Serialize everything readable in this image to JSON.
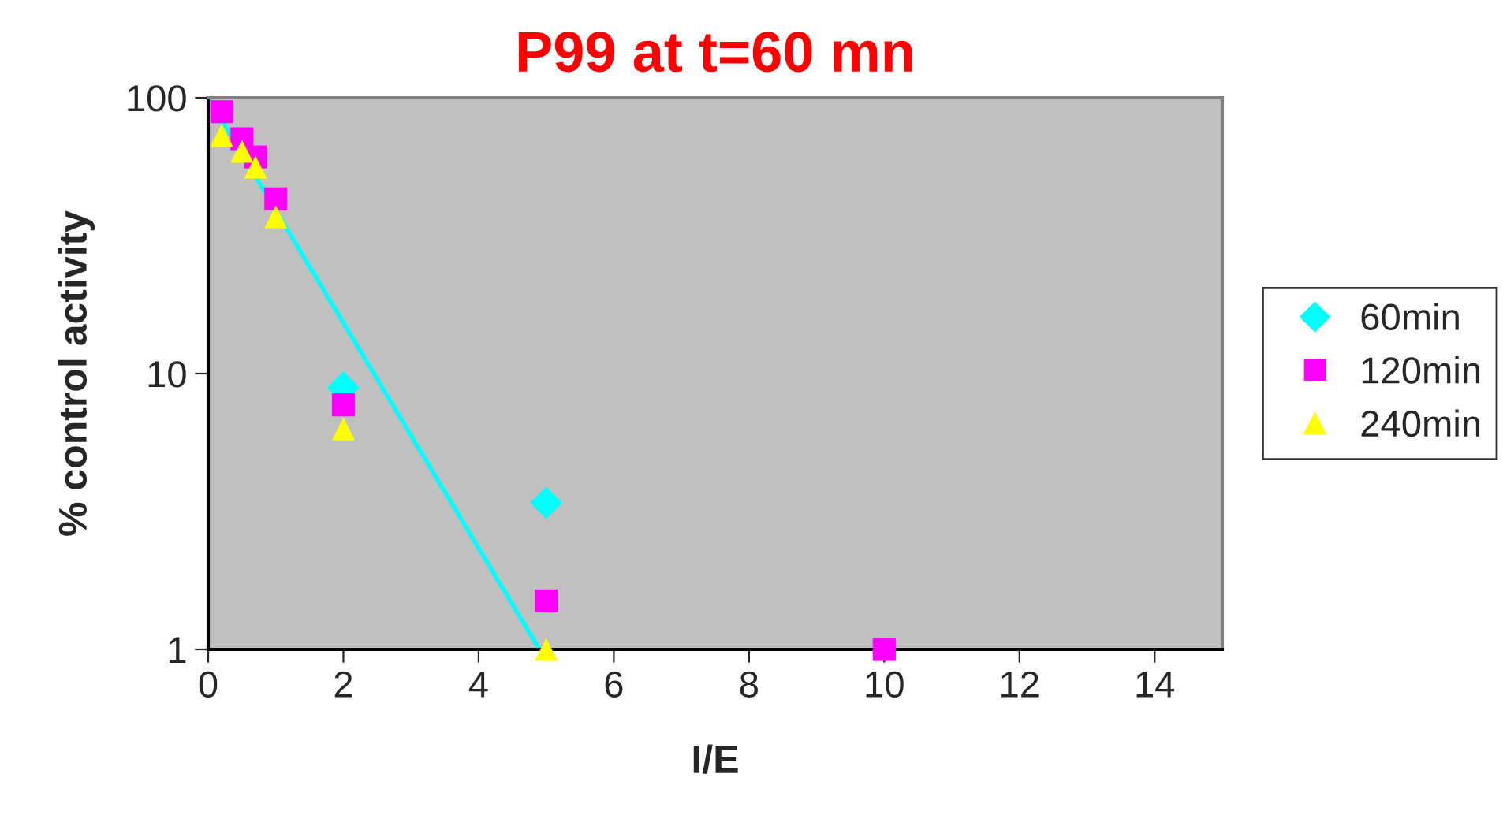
{
  "chart_data": {
    "type": "scatter",
    "title": "P99 at t=60 mn",
    "xlabel": "I/E",
    "ylabel": "% control activity",
    "log": "y",
    "xlim": [
      0,
      15
    ],
    "xticks": [
      0,
      2,
      4,
      6,
      8,
      10,
      12,
      14
    ],
    "ylim": [
      1,
      100
    ],
    "yticks": [
      1,
      10,
      100
    ],
    "grid": false,
    "legend": "right",
    "series": [
      {
        "name": "60min",
        "color": "#00ffff",
        "marker": "diamond",
        "x": [
          2,
          5
        ],
        "values": [
          8.9,
          3.4
        ]
      },
      {
        "name": "120min",
        "color": "#ff00ff",
        "marker": "square",
        "x": [
          0.2,
          0.5,
          0.7,
          1,
          2,
          5,
          10
        ],
        "values": [
          89,
          71,
          61,
          43,
          7.7,
          1.5,
          1.0
        ]
      },
      {
        "name": "240min",
        "color": "#ffff00",
        "marker": "triangle",
        "x": [
          0.2,
          0.5,
          0.7,
          1,
          2,
          5
        ],
        "values": [
          73,
          64,
          56,
          37,
          6.3,
          1.0
        ]
      },
      {
        "type": "line",
        "color": "#00ffff",
        "x": [
          0,
          4.9
        ],
        "values": [
          100,
          1
        ]
      }
    ]
  }
}
